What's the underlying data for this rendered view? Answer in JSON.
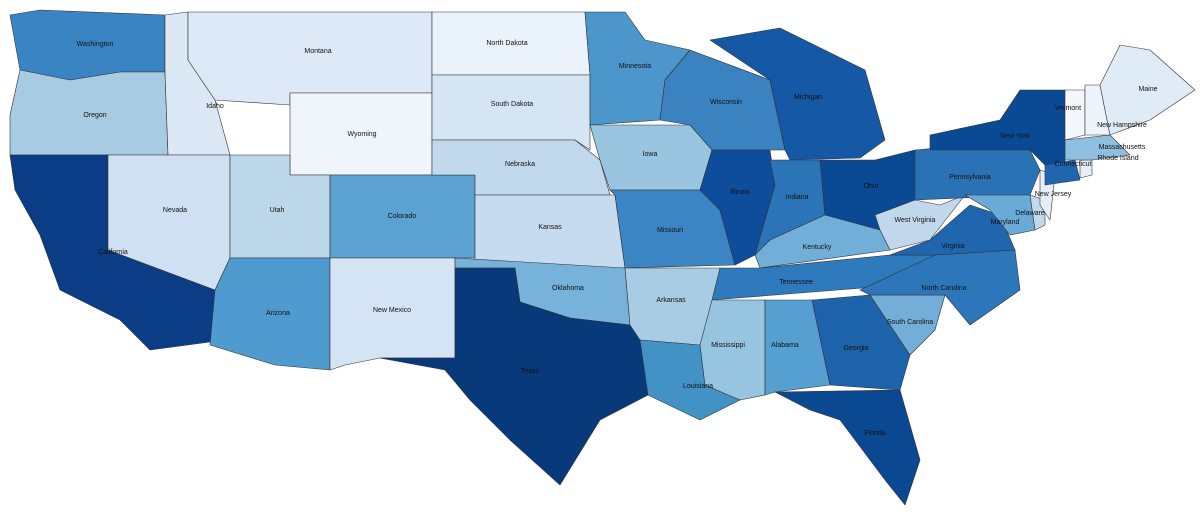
{
  "states": [
    {
      "name": "Washington",
      "color": "#3a84c4"
    },
    {
      "name": "Oregon",
      "color": "#a6cbe2"
    },
    {
      "name": "California",
      "color": "#0b3d87"
    },
    {
      "name": "Idaho",
      "color": "#dce8f5"
    },
    {
      "name": "Nevada",
      "color": "#cfe0f2"
    },
    {
      "name": "Montana",
      "color": "#dde9f6"
    },
    {
      "name": "Wyoming",
      "color": "#f0f5fc"
    },
    {
      "name": "Utah",
      "color": "#bcd6ea"
    },
    {
      "name": "Arizona",
      "color": "#4f9bd0"
    },
    {
      "name": "Colorado",
      "color": "#5ba2d3"
    },
    {
      "name": "New Mexico",
      "color": "#d4e4f4"
    },
    {
      "name": "North Dakota",
      "color": "#eaf2fb"
    },
    {
      "name": "South Dakota",
      "color": "#d5e5f4"
    },
    {
      "name": "Nebraska",
      "color": "#c2d9ed"
    },
    {
      "name": "Kansas",
      "color": "#c6dbef"
    },
    {
      "name": "Oklahoma",
      "color": "#77b2da"
    },
    {
      "name": "Texas",
      "color": "#08397a"
    },
    {
      "name": "Minnesota",
      "color": "#4c96cc"
    },
    {
      "name": "Iowa",
      "color": "#9ac5e0"
    },
    {
      "name": "Missouri",
      "color": "#3b85c4"
    },
    {
      "name": "Arkansas",
      "color": "#a7cce3"
    },
    {
      "name": "Louisiana",
      "color": "#4292c6"
    },
    {
      "name": "Wisconsin",
      "color": "#3a82c0"
    },
    {
      "name": "Illinois",
      "color": "#0d4d9c"
    },
    {
      "name": "Michigan",
      "color": "#1458a6"
    },
    {
      "name": "Indiana",
      "color": "#2b74b7"
    },
    {
      "name": "Ohio",
      "color": "#0a4a95"
    },
    {
      "name": "Kentucky",
      "color": "#72afd8"
    },
    {
      "name": "Tennessee",
      "color": "#2f7abd"
    },
    {
      "name": "Mississippi",
      "color": "#97c4df"
    },
    {
      "name": "Alabama",
      "color": "#569fd1"
    },
    {
      "name": "Georgia",
      "color": "#1d63ab"
    },
    {
      "name": "Florida",
      "color": "#0a4892"
    },
    {
      "name": "South Carolina",
      "color": "#72aed7"
    },
    {
      "name": "North Carolina",
      "color": "#2d76ba"
    },
    {
      "name": "Virginia",
      "color": "#1f66ae"
    },
    {
      "name": "West Virginia",
      "color": "#c1d7ec"
    },
    {
      "name": "Pennsylvania",
      "color": "#2a72b6"
    },
    {
      "name": "New York",
      "color": "#0a4a95"
    },
    {
      "name": "Maryland",
      "color": "#6aaad6"
    },
    {
      "name": "Delaware",
      "color": "#c1d8ed"
    },
    {
      "name": "New Jersey",
      "color": "#e6eff9"
    },
    {
      "name": "Connecticut",
      "color": "#1f66ae"
    },
    {
      "name": "Rhode Island",
      "color": "#e6eff9"
    },
    {
      "name": "Massachusetts",
      "color": "#8fbfde"
    },
    {
      "name": "Vermont",
      "color": "#f4f8fd"
    },
    {
      "name": "New Hampshire",
      "color": "#eef4fb"
    },
    {
      "name": "Maine",
      "color": "#dfebf7"
    }
  ]
}
